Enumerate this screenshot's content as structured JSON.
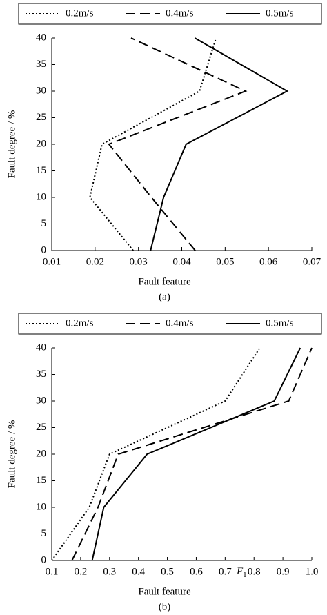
{
  "chart_data": [
    {
      "type": "line",
      "caption": "(a)",
      "xlabel": "Fault feature",
      "ylabel": "Fault degree / %",
      "xlim": [
        0.01,
        0.07
      ],
      "xticks": [
        0.01,
        0.02,
        0.03,
        0.04,
        0.05,
        0.06,
        0.07
      ],
      "ylim": [
        0,
        40
      ],
      "yticks": [
        0,
        5,
        10,
        15,
        20,
        25,
        30,
        35,
        40
      ],
      "legend": "top",
      "series": [
        {
          "name": "0.2m/s",
          "color": "#000000",
          "style": "dotted",
          "x": [
            0.0288,
            0.0188,
            0.0216,
            0.0441,
            0.0479
          ],
          "values": [
            0,
            10,
            20,
            30,
            40
          ]
        },
        {
          "name": "0.4m/s",
          "color": "#000000",
          "style": "dashed",
          "x": [
            0.0431,
            0.033,
            0.0232,
            0.0547,
            0.0283
          ],
          "values": [
            0,
            10,
            20,
            30,
            40
          ]
        },
        {
          "name": "0.5m/s",
          "color": "#000000",
          "style": "solid",
          "x": [
            0.0328,
            0.0358,
            0.041,
            0.0643,
            0.043
          ],
          "values": [
            0,
            10,
            20,
            30,
            40
          ]
        }
      ]
    },
    {
      "type": "line",
      "caption": "(b)",
      "xlabel": "Fault feature",
      "ylabel": "Fault degree / %",
      "annotation": {
        "symbol": "F",
        "subscript": "1"
      },
      "xlim": [
        0.1,
        1.0
      ],
      "xticks": [
        0.1,
        0.2,
        0.3,
        0.4,
        0.5,
        0.6,
        0.7,
        0.8,
        0.9,
        {
          "value": 1.0,
          "label": "1.0"
        }
      ],
      "ylim": [
        0,
        40
      ],
      "yticks": [
        0,
        5,
        10,
        15,
        20,
        25,
        30,
        35,
        40
      ],
      "legend": "top",
      "series": [
        {
          "name": "0.2m/s",
          "color": "#000000",
          "style": "dotted",
          "x": [
            0.1,
            0.23,
            0.3,
            0.7,
            0.82
          ],
          "values": [
            0,
            10,
            20,
            30,
            40
          ]
        },
        {
          "name": "0.4m/s",
          "color": "#000000",
          "style": "dashed",
          "x": [
            0.17,
            0.26,
            0.33,
            0.92,
            1.0
          ],
          "values": [
            0,
            10,
            20,
            30,
            40
          ]
        },
        {
          "name": "0.5m/s",
          "color": "#000000",
          "style": "solid",
          "x": [
            0.24,
            0.28,
            0.43,
            0.87,
            0.96
          ],
          "values": [
            0,
            10,
            20,
            30,
            40
          ]
        }
      ]
    }
  ]
}
